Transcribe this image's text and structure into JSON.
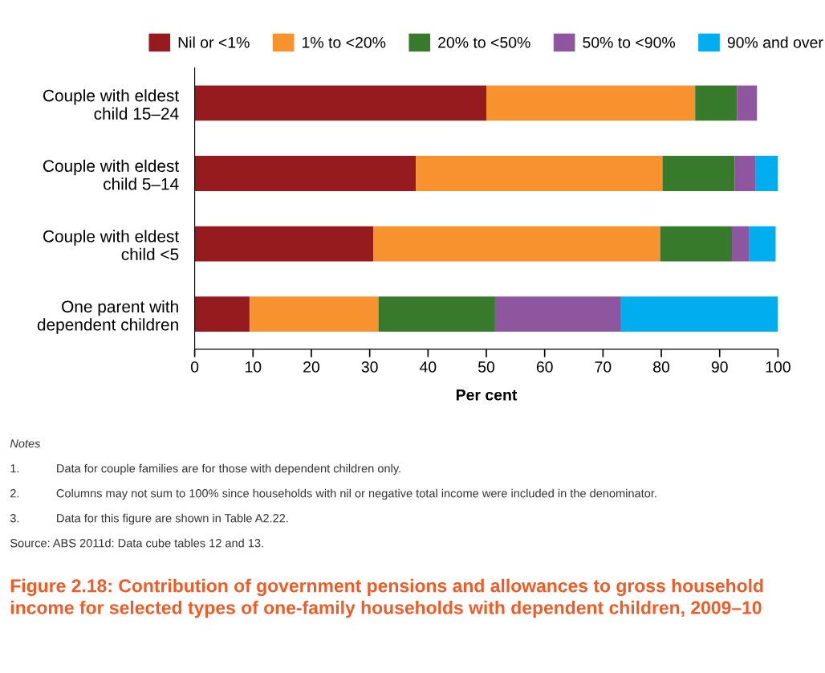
{
  "chart_data": {
    "type": "bar",
    "orientation": "horizontal",
    "stacked": true,
    "title": "Figure 2.18: Contribution of government pensions and allowances to gross household income for selected types of one-family households with dependent children, 2009–10",
    "xlabel": "Per cent",
    "categories": [
      "Couple with eldest\nchild 15–24",
      "Couple with eldest\nchild 5–14",
      "Couple with eldest\nchild <5",
      "One parent with\ndependent children"
    ],
    "series": [
      {
        "name": "Nil or <1%",
        "color": "#961b1f",
        "values": [
          50.0,
          37.9,
          30.6,
          9.4
        ]
      },
      {
        "name": "1% to <20%",
        "color": "#f7922f",
        "values": [
          35.8,
          42.3,
          49.2,
          22.1
        ]
      },
      {
        "name": "20% to <50%",
        "color": "#387a2c",
        "values": [
          7.2,
          12.4,
          12.3,
          20.0
        ]
      },
      {
        "name": "50% to <90%",
        "color": "#8f56a0",
        "values": [
          3.4,
          3.5,
          2.9,
          21.6
        ]
      },
      {
        "name": "90% and over",
        "color": "#00adef",
        "values": [
          0,
          3.9,
          4.6,
          26.9
        ]
      }
    ],
    "xlim": [
      0,
      100
    ],
    "xticks": [
      0,
      10,
      20,
      30,
      40,
      50,
      60,
      70,
      80,
      90,
      100
    ],
    "grid": false,
    "legend": "top",
    "annotations": [
      "Notes",
      "1.\tData for couple families are for those with dependent children only.",
      "2.\tColumns may not sum to 100% since households with nil or negative total income were included in the denominator.",
      "3.\tData for this figure are shown in Table A2.22.",
      "Source: ABS 2011d: Data cube tables 12 and 13."
    ]
  }
}
